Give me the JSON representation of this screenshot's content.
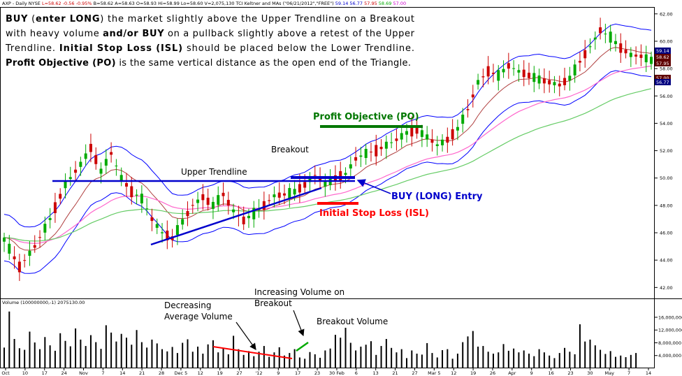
{
  "header": {
    "parts": [
      {
        "text": "AXP - Daily  NYSE",
        "color": "#000000"
      },
      {
        "text": "L=58.62",
        "color": "#cc0000"
      },
      {
        "text": "-0.56",
        "color": "#cc0000"
      },
      {
        "text": "-0.95%",
        "color": "#cc0000"
      },
      {
        "text": "B=58.62",
        "color": "#000000"
      },
      {
        "text": "A=58.63",
        "color": "#000000"
      },
      {
        "text": "O=58.93",
        "color": "#000000"
      },
      {
        "text": "Hi=58.99",
        "color": "#000000"
      },
      {
        "text": "Lo=58.60",
        "color": "#000000"
      },
      {
        "text": "V=2,075,130",
        "color": "#000000"
      },
      {
        "text": "TCI Keltner and MAs (\"06/21/2012\",\"FREE\")",
        "color": "#000000"
      },
      {
        "text": "59.14",
        "color": "#0000cc"
      },
      {
        "text": "56.77",
        "color": "#0000cc"
      },
      {
        "text": "57.95",
        "color": "#cc0000"
      },
      {
        "text": "58.69",
        "color": "#00aa00"
      },
      {
        "text": "57.00",
        "color": "#cc00cc"
      }
    ]
  },
  "description_lines": [
    [
      {
        "t": "BUY",
        "b": true
      },
      {
        "t": " (",
        "b": false
      },
      {
        "t": "enter LONG",
        "b": true
      },
      {
        "t": ") the market slightly above the Upper Trendline on a Breakout",
        "b": false
      }
    ],
    [
      {
        "t": "with heavy volume ",
        "b": false
      },
      {
        "t": "and/or BUY",
        "b": true
      },
      {
        "t": " on a pullback slightly above a retest of the Upper",
        "b": false
      }
    ],
    [
      {
        "t": "Trendline.  ",
        "b": false
      },
      {
        "t": "Initial Stop Loss (ISL)",
        "b": true
      },
      {
        "t": " should be placed below the Lower Trendline.",
        "b": false
      }
    ],
    [
      {
        "t": "Profit Objective (PO)",
        "b": true
      },
      {
        "t": " is the same vertical distance as the open end of the Triangle.",
        "b": false
      }
    ]
  ],
  "annotations": {
    "upper_trendline": "Upper Trendline",
    "breakout": "Breakout",
    "profit_objective": "Profit Objective (PO)",
    "buy_entry": "BUY (LONG) Entry",
    "initial_stop": "Initial Stop Loss (ISL)",
    "decreasing_volume": [
      "Decreasing",
      "Average Volume"
    ],
    "increasing_volume": [
      "Increasing Volume on",
      "Breakout"
    ],
    "breakout_volume": "Breakout Volume"
  },
  "colors": {
    "up_candle": "#00aa00",
    "down_candle": "#cc0000",
    "keltner": "#0000ff",
    "ma_red": "#b04040",
    "ma_pink": "#ff66cc",
    "ma_green": "#66cc66",
    "trendline": "#0000cc",
    "po_line": "#007700",
    "isl_line": "#ff0000"
  },
  "chart_data": [
    {
      "type": "candlestick",
      "title": "AXP - Daily",
      "y_range": [
        41.2,
        62.4
      ],
      "y_ticks": [
        "62.00",
        "60.00",
        "58.00",
        "56.00",
        "54.00",
        "52.00",
        "50.00",
        "48.00",
        "46.00",
        "44.00",
        "42.00"
      ],
      "y_tick_values": [
        62,
        60,
        58,
        56,
        54,
        52,
        50,
        48,
        46,
        44,
        42
      ],
      "x_tick_labels": [
        "Oct",
        "10",
        "17",
        "24",
        "Nov",
        "7",
        "14",
        "21",
        "28",
        "Dec 5",
        "12",
        "19",
        "27",
        "'12",
        "9",
        "17",
        "23",
        "30 Feb",
        "6",
        "13",
        "21",
        "27",
        "Mar 5",
        "12",
        "19",
        "26",
        "Apr",
        "9",
        "16",
        "23",
        "30",
        "May",
        "7",
        "14"
      ],
      "price_markers": [
        {
          "value": "59.14",
          "color": "#000080"
        },
        {
          "value": "58.62",
          "color": "#600000"
        },
        {
          "value": "57.95",
          "color": "#600000"
        },
        {
          "value": "57.00",
          "color": "#600000"
        },
        {
          "value": "56.77",
          "color": "#000080"
        }
      ],
      "price_points": [
        [
          0,
          45.5
        ],
        [
          3,
          43.5
        ],
        [
          6,
          45.0
        ],
        [
          9,
          47.0
        ],
        [
          12,
          49.5
        ],
        [
          15,
          51.0
        ],
        [
          17,
          52.2
        ],
        [
          19,
          50.5
        ],
        [
          21,
          51.8
        ],
        [
          23,
          50.0
        ],
        [
          25,
          49.0
        ],
        [
          27,
          48.5
        ],
        [
          29,
          47.0
        ],
        [
          31,
          46.0
        ],
        [
          33,
          45.6
        ],
        [
          35,
          46.8
        ],
        [
          37,
          48.0
        ],
        [
          39,
          48.6
        ],
        [
          41,
          48.0
        ],
        [
          43,
          48.8
        ],
        [
          45,
          47.6
        ],
        [
          47,
          46.9
        ],
        [
          49,
          47.4
        ],
        [
          51,
          48.0
        ],
        [
          53,
          48.7
        ],
        [
          55,
          48.8
        ],
        [
          57,
          49.0
        ],
        [
          59,
          49.5
        ],
        [
          61,
          50.2
        ],
        [
          63,
          49.6
        ],
        [
          65,
          50.0
        ],
        [
          67,
          50.3
        ],
        [
          69,
          51.4
        ],
        [
          71,
          51.8
        ],
        [
          73,
          52.0
        ],
        [
          75,
          52.4
        ],
        [
          77,
          52.8
        ],
        [
          79,
          53.3
        ],
        [
          81,
          53.5
        ],
        [
          83,
          53.0
        ],
        [
          85,
          52.4
        ],
        [
          87,
          52.8
        ],
        [
          89,
          53.6
        ],
        [
          91,
          55.0
        ],
        [
          93,
          57.0
        ],
        [
          95,
          57.8
        ],
        [
          97,
          57.5
        ],
        [
          99,
          58.2
        ],
        [
          101,
          57.8
        ],
        [
          103,
          57.5
        ],
        [
          105,
          57.2
        ],
        [
          107,
          57.0
        ],
        [
          109,
          56.8
        ],
        [
          111,
          57.3
        ],
        [
          113,
          58.5
        ],
        [
          115,
          59.6
        ],
        [
          117,
          60.8
        ],
        [
          119,
          60.3
        ],
        [
          121,
          59.5
        ],
        [
          123,
          59.0
        ],
        [
          125,
          58.9
        ],
        [
          127,
          58.6
        ]
      ],
      "volume": {
        "label": "Volume (100000000,-1)   2075130.00",
        "y_ticks": [
          "16,000,000",
          "12,000,000",
          "8,000,000",
          "4,000,000"
        ],
        "y_tick_values": [
          16000000,
          12000000,
          8000000,
          4000000
        ],
        "y_range": [
          0,
          19500000
        ],
        "values": [
          6.5,
          17.8,
          9.2,
          6.3,
          5.8,
          11.5,
          8.1,
          6.0,
          9.8,
          7.2,
          5.5,
          11.0,
          8.6,
          6.9,
          12.5,
          9.0,
          7.0,
          10.4,
          8.2,
          6.1,
          13.5,
          11.2,
          8.4,
          10.8,
          9.6,
          7.4,
          12.0,
          8.2,
          6.5,
          9.0,
          7.8,
          6.0,
          5.3,
          6.7,
          4.8,
          8.0,
          9.1,
          5.2,
          6.8,
          4.6,
          7.5,
          8.8,
          5.0,
          6.3,
          4.4,
          10.2,
          6.0,
          4.2,
          5.4,
          3.8,
          5.2,
          7.0,
          3.6,
          5.0,
          6.6,
          4.0,
          4.8,
          6.0,
          3.4,
          3.0,
          5.1,
          4.4,
          3.3,
          5.6,
          6.2,
          10.5,
          9.6,
          12.7,
          8.0,
          5.6,
          6.8,
          7.4,
          8.5,
          4.2,
          7.0,
          9.2,
          6.4,
          5.0,
          6.0,
          3.2,
          5.6,
          4.6,
          4.3,
          7.9,
          4.8,
          3.4,
          5.7,
          6.0,
          3.0,
          4.6,
          8.2,
          10.0,
          11.7,
          6.8,
          7.0,
          5.2,
          4.6,
          5.0,
          7.6,
          5.5,
          6.2,
          5.0,
          5.6,
          4.6,
          3.8,
          6.0,
          5.0,
          4.0,
          3.2,
          4.8,
          6.4,
          5.2,
          4.4,
          13.8,
          8.4,
          9.0,
          7.2,
          5.8,
          4.5,
          5.4,
          3.6,
          4.0,
          3.5,
          4.2,
          4.8
        ]
      }
    }
  ]
}
